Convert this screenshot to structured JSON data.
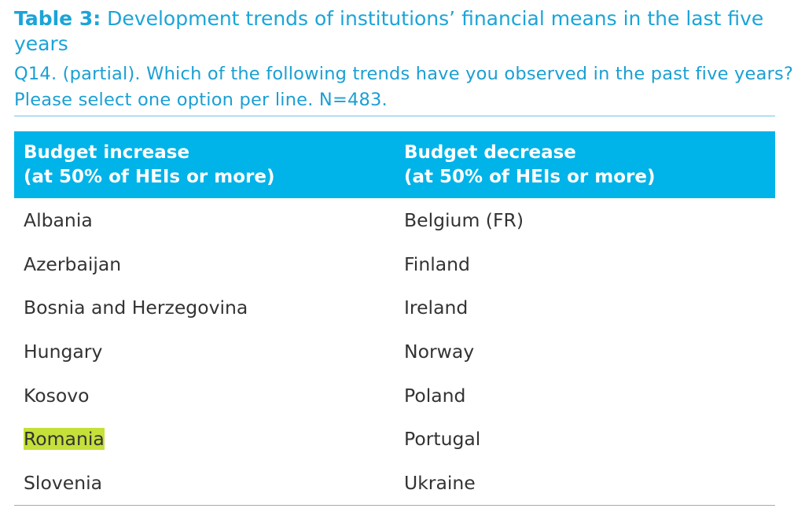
{
  "header": {
    "label": "Table 3:",
    "title": "Development trends of institutions’ financial means in the last five years",
    "subtitle": [
      "Q14. (partial). Which of the following trends have you observed in the past five years?",
      "Please select one option per line. N=483."
    ]
  },
  "table": {
    "columns": [
      [
        "Budget increase",
        "(at 50% of HEIs or more)"
      ],
      [
        "Budget decrease",
        "(at 50% of HEIs or more)"
      ]
    ],
    "rows": [
      [
        "Albania",
        "Belgium (FR)"
      ],
      [
        "Azerbaijan",
        "Finland"
      ],
      [
        "Bosnia and Herzegovina",
        "Ireland"
      ],
      [
        "Hungary",
        "Norway"
      ],
      [
        "Kosovo",
        "Poland"
      ],
      [
        "Romania",
        "Portugal"
      ],
      [
        "Slovenia",
        "Ukraine"
      ]
    ]
  }
}
